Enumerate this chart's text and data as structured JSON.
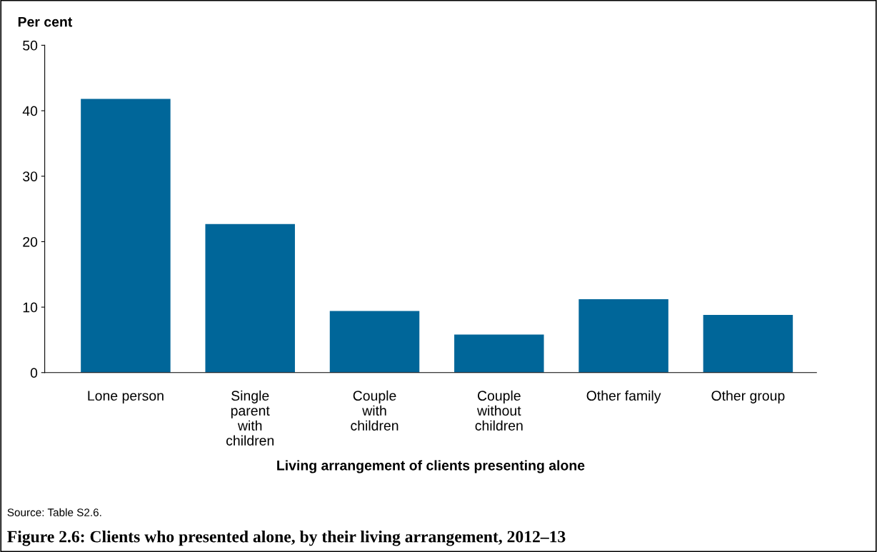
{
  "chart_data": {
    "type": "bar",
    "title": "Figure 2.6: Clients who presented alone, by their living arrangement, 2012–13",
    "xlabel": "Living arrangement of clients presenting alone",
    "ylabel": "Per cent",
    "categories": [
      "Lone person",
      "Single\nparent\nwith\nchildren",
      "Couple\nwith\nchildren",
      "Couple\nwithout\nchildren",
      "Other family",
      "Other group"
    ],
    "values": [
      41.8,
      22.7,
      9.4,
      5.8,
      11.2,
      8.8
    ],
    "color": "#006699",
    "ylim": [
      0,
      50
    ],
    "yticks": [
      0,
      10,
      20,
      30,
      40,
      50
    ],
    "grid": false,
    "legend": false,
    "annotations": [
      "Source: Table S2.6."
    ]
  }
}
